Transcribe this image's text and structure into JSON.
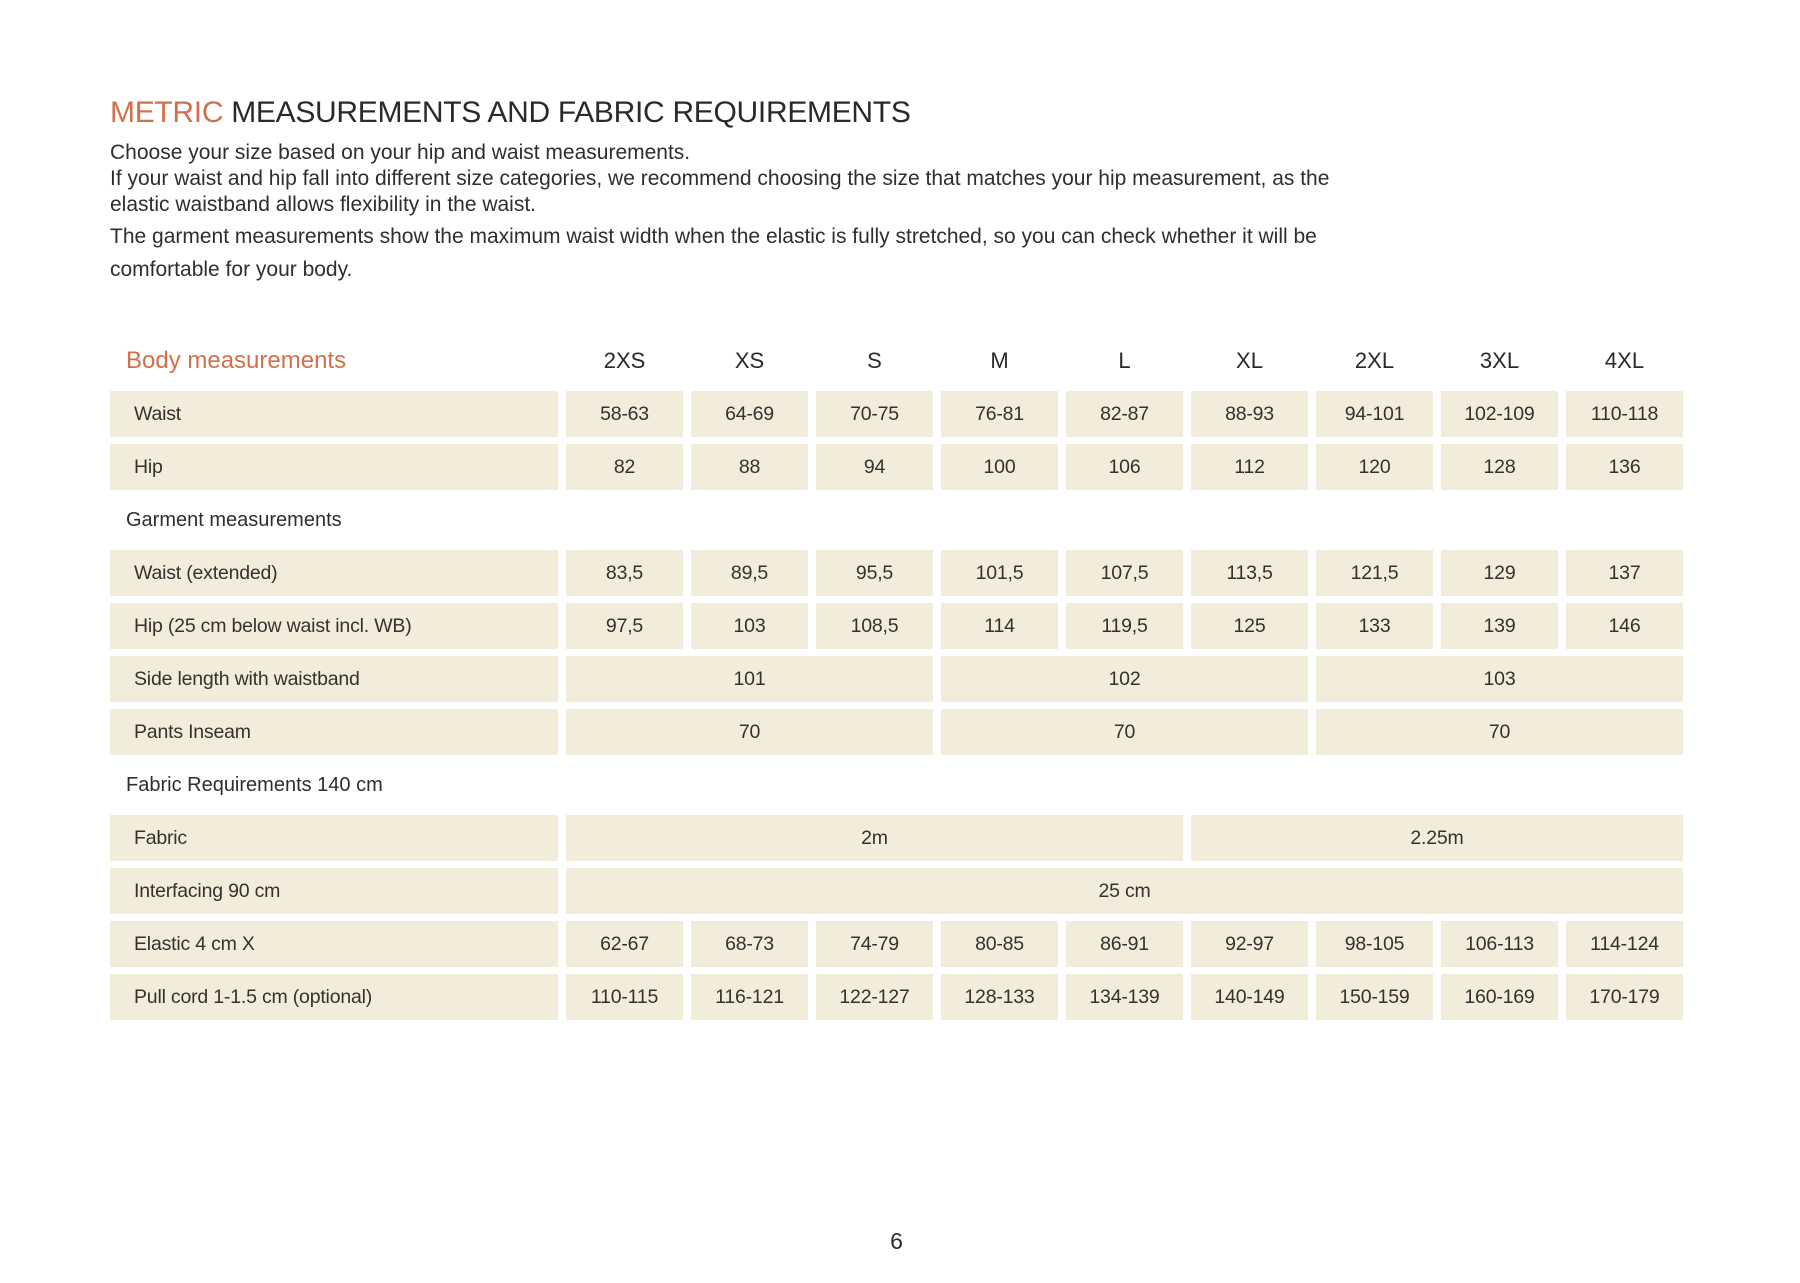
{
  "colors": {
    "accent_orange": "#d1714b",
    "cell_beige": "#f2ecdb",
    "text_dark": "#2f2e2a"
  },
  "header": {
    "title_accent": "METRIC",
    "title_rest": " MEASUREMENTS AND FABRIC REQUIREMENTS",
    "intro_paragraphs": {
      "p1": "Choose your size based on your hip and waist measurements.",
      "p2": "If your waist and hip fall into different size categories, we recommend choosing the size that matches your hip measurement, as the\nelastic waistband allows flexibility in the waist.",
      "p3": "The garment measurements show the maximum waist width when the elastic is fully stretched, so you can check whether it will be\ncomfortable for your body."
    }
  },
  "table": {
    "header_label": "Body measurements",
    "sizes": [
      "2XS",
      "XS",
      "S",
      "M",
      "L",
      "XL",
      "2XL",
      "3XL",
      "4XL"
    ],
    "body_rows": [
      {
        "label": "Waist",
        "values": [
          "58-63",
          "64-69",
          "70-75",
          "76-81",
          "82-87",
          "88-93",
          "94-101",
          "102-109",
          "110-118"
        ]
      },
      {
        "label": "Hip",
        "values": [
          "82",
          "88",
          "94",
          "100",
          "106",
          "112",
          "120",
          "128",
          "136"
        ]
      }
    ],
    "garment_section_label": "Garment measurements",
    "garment_rows": [
      {
        "label": "Waist (extended)",
        "values": [
          "83,5",
          "89,5",
          "95,5",
          "101,5",
          "107,5",
          "113,5",
          "121,5",
          "129",
          "137"
        ]
      },
      {
        "label": "Hip (25 cm below waist incl. WB)",
        "values": [
          "97,5",
          "103",
          "108,5",
          "114",
          "119,5",
          "125",
          "133",
          "139",
          "146"
        ]
      }
    ],
    "merged_rows": [
      {
        "label": "Side length with waistband",
        "values": [
          "101",
          "102",
          "103"
        ]
      },
      {
        "label": "Pants Inseam",
        "values": [
          "70",
          "70",
          "70"
        ]
      }
    ],
    "fabric_section_label": "Fabric Requirements 140 cm",
    "fabric_row": {
      "label": "Fabric",
      "values": [
        "2m",
        "2.25m"
      ]
    },
    "interfacing_row": {
      "label": "Interfacing 90 cm",
      "value": "25 cm"
    },
    "fabric_detail_rows": [
      {
        "label": "Elastic 4 cm X",
        "values": [
          "62-67",
          "68-73",
          "74-79",
          "80-85",
          "86-91",
          "92-97",
          "98-105",
          "106-113",
          "114-124"
        ]
      },
      {
        "label": "Pull cord 1-1.5 cm (optional)",
        "values": [
          "110-115",
          "116-121",
          "122-127",
          "128-133",
          "134-139",
          "140-149",
          "150-159",
          "160-169",
          "170-179"
        ]
      }
    ]
  },
  "footer": {
    "page_number": "6"
  }
}
